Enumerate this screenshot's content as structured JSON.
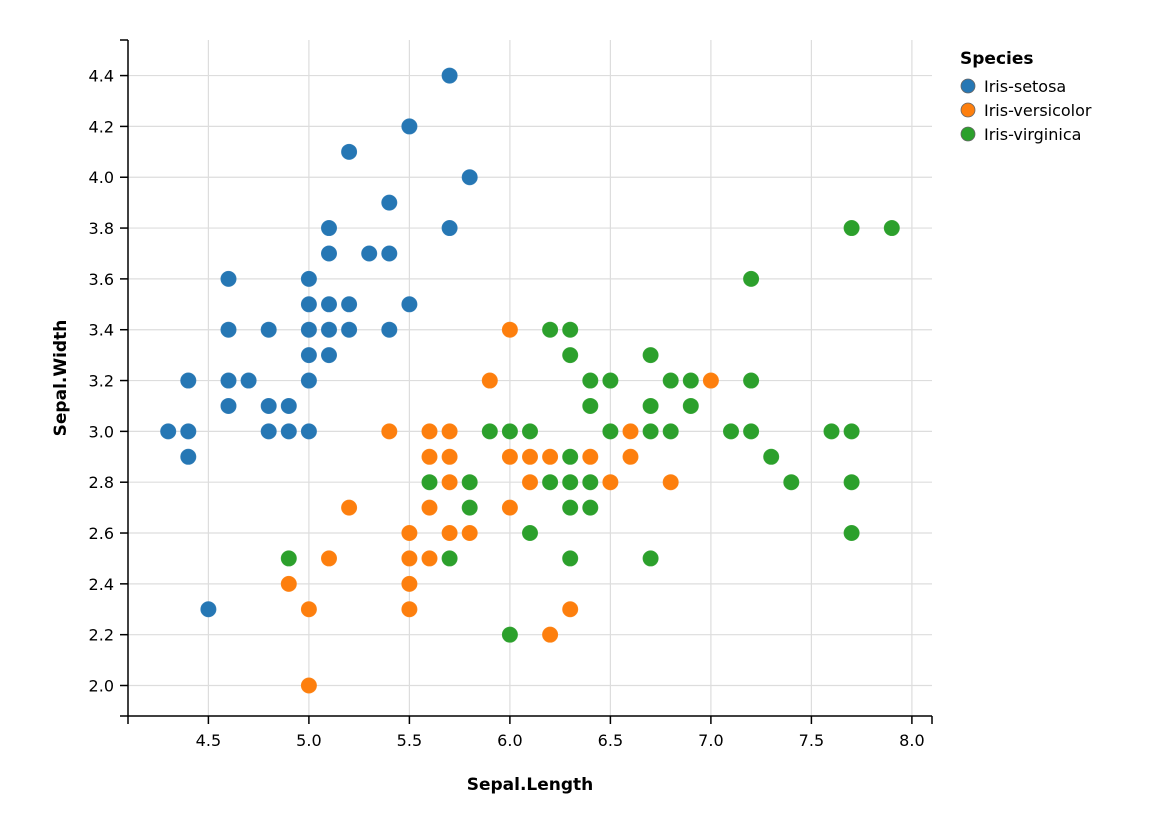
{
  "chart_data": {
    "type": "scatter",
    "title": "",
    "xlabel": "Sepal.Length",
    "ylabel": "Sepal.Width",
    "xlim": [
      4.1,
      8.1
    ],
    "ylim": [
      1.88,
      4.54
    ],
    "grid": true,
    "x_ticks": [
      4.5,
      5.0,
      5.5,
      6.0,
      6.5,
      7.0,
      7.5,
      8.0
    ],
    "y_ticks": [
      2.0,
      2.2,
      2.4,
      2.6,
      2.8,
      3.0,
      3.2,
      3.4,
      3.6,
      3.8,
      4.0,
      4.2,
      4.4
    ],
    "legend": {
      "title": "Species",
      "placement": "top-right"
    },
    "series": [
      {
        "name": "Iris-setosa",
        "color": "#2677b4",
        "points": [
          [
            5.7,
            4.4
          ],
          [
            5.5,
            4.2
          ],
          [
            5.2,
            4.1
          ],
          [
            5.8,
            4.0
          ],
          [
            5.4,
            3.9
          ],
          [
            5.1,
            3.8
          ],
          [
            5.7,
            3.8
          ],
          [
            5.1,
            3.7
          ],
          [
            5.3,
            3.7
          ],
          [
            5.4,
            3.7
          ],
          [
            4.6,
            3.6
          ],
          [
            5.0,
            3.6
          ],
          [
            5.0,
            3.5
          ],
          [
            5.1,
            3.5
          ],
          [
            5.2,
            3.5
          ],
          [
            5.5,
            3.5
          ],
          [
            4.6,
            3.4
          ],
          [
            4.8,
            3.4
          ],
          [
            5.0,
            3.4
          ],
          [
            5.1,
            3.4
          ],
          [
            5.2,
            3.4
          ],
          [
            5.4,
            3.4
          ],
          [
            5.0,
            3.3
          ],
          [
            5.1,
            3.3
          ],
          [
            4.4,
            3.2
          ],
          [
            4.6,
            3.2
          ],
          [
            4.7,
            3.2
          ],
          [
            5.0,
            3.2
          ],
          [
            4.6,
            3.1
          ],
          [
            4.8,
            3.1
          ],
          [
            4.9,
            3.1
          ],
          [
            4.3,
            3.0
          ],
          [
            4.4,
            3.0
          ],
          [
            4.8,
            3.0
          ],
          [
            4.9,
            3.0
          ],
          [
            5.0,
            3.0
          ],
          [
            4.4,
            2.9
          ],
          [
            4.5,
            2.3
          ]
        ]
      },
      {
        "name": "Iris-versicolor",
        "color": "#fd7f0e",
        "points": [
          [
            6.0,
            3.4
          ],
          [
            5.9,
            3.2
          ],
          [
            7.0,
            3.2
          ],
          [
            5.4,
            3.0
          ],
          [
            5.6,
            3.0
          ],
          [
            5.7,
            3.0
          ],
          [
            6.6,
            3.0
          ],
          [
            5.6,
            2.9
          ],
          [
            5.7,
            2.9
          ],
          [
            6.0,
            2.9
          ],
          [
            6.1,
            2.9
          ],
          [
            6.2,
            2.9
          ],
          [
            6.4,
            2.9
          ],
          [
            6.6,
            2.9
          ],
          [
            5.7,
            2.8
          ],
          [
            6.1,
            2.8
          ],
          [
            6.5,
            2.8
          ],
          [
            6.8,
            2.8
          ],
          [
            5.2,
            2.7
          ],
          [
            5.6,
            2.7
          ],
          [
            6.0,
            2.7
          ],
          [
            5.5,
            2.6
          ],
          [
            5.7,
            2.6
          ],
          [
            5.8,
            2.6
          ],
          [
            5.1,
            2.5
          ],
          [
            5.5,
            2.5
          ],
          [
            5.6,
            2.5
          ],
          [
            4.9,
            2.4
          ],
          [
            5.5,
            2.4
          ],
          [
            5.0,
            2.3
          ],
          [
            5.5,
            2.3
          ],
          [
            6.3,
            2.3
          ],
          [
            6.2,
            2.2
          ],
          [
            5.0,
            2.0
          ]
        ]
      },
      {
        "name": "Iris-virginica",
        "color": "#2ca02c",
        "points": [
          [
            7.7,
            3.8
          ],
          [
            7.9,
            3.8
          ],
          [
            7.2,
            3.6
          ],
          [
            6.2,
            3.4
          ],
          [
            6.3,
            3.4
          ],
          [
            6.3,
            3.3
          ],
          [
            6.7,
            3.3
          ],
          [
            6.4,
            3.2
          ],
          [
            6.5,
            3.2
          ],
          [
            6.8,
            3.2
          ],
          [
            6.9,
            3.2
          ],
          [
            7.2,
            3.2
          ],
          [
            6.4,
            3.1
          ],
          [
            6.7,
            3.1
          ],
          [
            6.9,
            3.1
          ],
          [
            5.9,
            3.0
          ],
          [
            6.0,
            3.0
          ],
          [
            6.1,
            3.0
          ],
          [
            6.5,
            3.0
          ],
          [
            6.7,
            3.0
          ],
          [
            6.8,
            3.0
          ],
          [
            7.1,
            3.0
          ],
          [
            7.2,
            3.0
          ],
          [
            7.6,
            3.0
          ],
          [
            7.7,
            3.0
          ],
          [
            6.3,
            2.9
          ],
          [
            7.3,
            2.9
          ],
          [
            5.6,
            2.8
          ],
          [
            5.8,
            2.8
          ],
          [
            6.2,
            2.8
          ],
          [
            6.3,
            2.8
          ],
          [
            6.4,
            2.8
          ],
          [
            7.4,
            2.8
          ],
          [
            7.7,
            2.8
          ],
          [
            5.8,
            2.7
          ],
          [
            6.3,
            2.7
          ],
          [
            6.4,
            2.7
          ],
          [
            6.1,
            2.6
          ],
          [
            7.7,
            2.6
          ],
          [
            4.9,
            2.5
          ],
          [
            5.7,
            2.5
          ],
          [
            6.3,
            2.5
          ],
          [
            6.7,
            2.5
          ],
          [
            6.0,
            2.2
          ]
        ]
      }
    ]
  }
}
